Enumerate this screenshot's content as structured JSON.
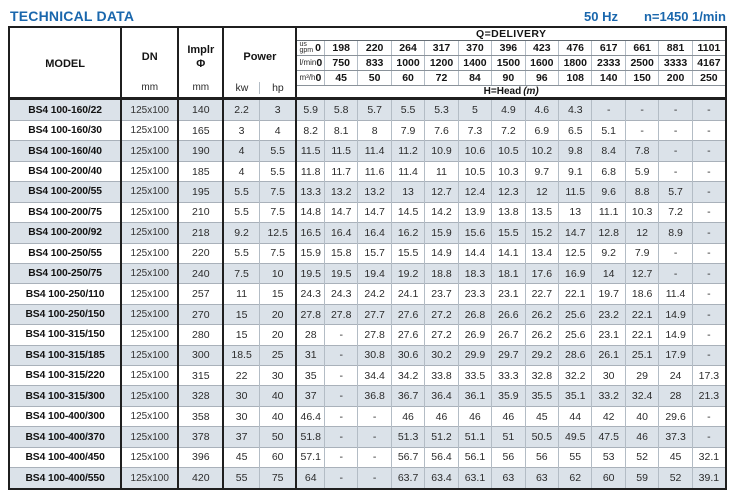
{
  "page": {
    "title": "TECHNICAL DATA",
    "frequency": "50 Hz",
    "speed": "n=1450 1/min"
  },
  "colors": {
    "accent_blue": "#1a67ad",
    "row_shade": "#dbe2e9",
    "border_dark": "#1f1f1f",
    "border_light": "#b3bcc5"
  },
  "table": {
    "header": {
      "model": "MODEL",
      "dn": "DN",
      "dn_unit": "mm",
      "impeller": "Implr",
      "impeller_symbol": "Φ",
      "impeller_unit": "mm",
      "power": "Power",
      "power_kw": "kw",
      "power_hp": "hp"
    },
    "delivery": {
      "title": "Q=DELIVERY",
      "head_title": "H=Head",
      "head_unit": "(m)",
      "unit_rows": [
        {
          "name": "us-gpm",
          "label_lines": [
            "us",
            "gpm"
          ],
          "zero": "0",
          "values": [
            "198",
            "220",
            "264",
            "317",
            "370",
            "396",
            "423",
            "476",
            "617",
            "661",
            "881",
            "1101"
          ]
        },
        {
          "name": "l-min",
          "label_lines": [
            "l/min"
          ],
          "zero": "0",
          "values": [
            "750",
            "833",
            "1000",
            "1200",
            "1400",
            "1500",
            "1600",
            "1800",
            "2333",
            "2500",
            "3333",
            "4167"
          ]
        },
        {
          "name": "m3-h",
          "label_lines": [
            "m³/h"
          ],
          "zero": "0",
          "values": [
            "45",
            "50",
            "60",
            "72",
            "84",
            "90",
            "96",
            "108",
            "140",
            "150",
            "200",
            "250"
          ]
        }
      ]
    },
    "rows": [
      {
        "model": "BS4 100-160/22",
        "dn": "125x100",
        "impeller": "140",
        "power_kw": "2.2",
        "power_hp": "3",
        "head": [
          "5.9",
          "5.8",
          "5.7",
          "5.5",
          "5.3",
          "5",
          "4.9",
          "4.6",
          "4.3",
          "-",
          "-",
          "-",
          "-"
        ]
      },
      {
        "model": "BS4 100-160/30",
        "dn": "125x100",
        "impeller": "165",
        "power_kw": "3",
        "power_hp": "4",
        "head": [
          "8.2",
          "8.1",
          "8",
          "7.9",
          "7.6",
          "7.3",
          "7.2",
          "6.9",
          "6.5",
          "5.1",
          "-",
          "-",
          "-"
        ]
      },
      {
        "model": "BS4 100-160/40",
        "dn": "125x100",
        "impeller": "190",
        "power_kw": "4",
        "power_hp": "5.5",
        "head": [
          "11.5",
          "11.5",
          "11.4",
          "11.2",
          "10.9",
          "10.6",
          "10.5",
          "10.2",
          "9.8",
          "8.4",
          "7.8",
          "-",
          "-"
        ]
      },
      {
        "model": "BS4 100-200/40",
        "dn": "125x100",
        "impeller": "185",
        "power_kw": "4",
        "power_hp": "5.5",
        "head": [
          "11.8",
          "11.7",
          "11.6",
          "11.4",
          "11",
          "10.5",
          "10.3",
          "9.7",
          "9.1",
          "6.8",
          "5.9",
          "-",
          "-"
        ]
      },
      {
        "model": "BS4 100-200/55",
        "dn": "125x100",
        "impeller": "195",
        "power_kw": "5.5",
        "power_hp": "7.5",
        "head": [
          "13.3",
          "13.2",
          "13.2",
          "13",
          "12.7",
          "12.4",
          "12.3",
          "12",
          "11.5",
          "9.6",
          "8.8",
          "5.7",
          "-"
        ]
      },
      {
        "model": "BS4 100-200/75",
        "dn": "125x100",
        "impeller": "210",
        "power_kw": "5.5",
        "power_hp": "7.5",
        "head": [
          "14.8",
          "14.7",
          "14.7",
          "14.5",
          "14.2",
          "13.9",
          "13.8",
          "13.5",
          "13",
          "11.1",
          "10.3",
          "7.2",
          "-"
        ]
      },
      {
        "model": "BS4 100-200/92",
        "dn": "125x100",
        "impeller": "218",
        "power_kw": "9.2",
        "power_hp": "12.5",
        "head": [
          "16.5",
          "16.4",
          "16.4",
          "16.2",
          "15.9",
          "15.6",
          "15.5",
          "15.2",
          "14.7",
          "12.8",
          "12",
          "8.9",
          "-"
        ]
      },
      {
        "model": "BS4 100-250/55",
        "dn": "125x100",
        "impeller": "220",
        "power_kw": "5.5",
        "power_hp": "7.5",
        "head": [
          "15.9",
          "15.8",
          "15.7",
          "15.5",
          "14.9",
          "14.4",
          "14.1",
          "13.4",
          "12.5",
          "9.2",
          "7.9",
          "-",
          "-"
        ]
      },
      {
        "model": "BS4 100-250/75",
        "dn": "125x100",
        "impeller": "240",
        "power_kw": "7.5",
        "power_hp": "10",
        "head": [
          "19.5",
          "19.5",
          "19.4",
          "19.2",
          "18.8",
          "18.3",
          "18.1",
          "17.6",
          "16.9",
          "14",
          "12.7",
          "-",
          "-"
        ]
      },
      {
        "model": "BS4 100-250/110",
        "dn": "125x100",
        "impeller": "257",
        "power_kw": "11",
        "power_hp": "15",
        "head": [
          "24.3",
          "24.3",
          "24.2",
          "24.1",
          "23.7",
          "23.3",
          "23.1",
          "22.7",
          "22.1",
          "19.7",
          "18.6",
          "11.4",
          "-"
        ]
      },
      {
        "model": "BS4 100-250/150",
        "dn": "125x100",
        "impeller": "270",
        "power_kw": "15",
        "power_hp": "20",
        "head": [
          "27.8",
          "27.8",
          "27.7",
          "27.6",
          "27.2",
          "26.8",
          "26.6",
          "26.2",
          "25.6",
          "23.2",
          "22.1",
          "14.9",
          "-"
        ]
      },
      {
        "model": "BS4 100-315/150",
        "dn": "125x100",
        "impeller": "280",
        "power_kw": "15",
        "power_hp": "20",
        "head": [
          "28",
          "-",
          "27.8",
          "27.6",
          "27.2",
          "26.9",
          "26.7",
          "26.2",
          "25.6",
          "23.1",
          "22.1",
          "14.9",
          "-"
        ]
      },
      {
        "model": "BS4 100-315/185",
        "dn": "125x100",
        "impeller": "300",
        "power_kw": "18.5",
        "power_hp": "25",
        "head": [
          "31",
          "-",
          "30.8",
          "30.6",
          "30.2",
          "29.9",
          "29.7",
          "29.2",
          "28.6",
          "26.1",
          "25.1",
          "17.9",
          "-"
        ]
      },
      {
        "model": "BS4 100-315/220",
        "dn": "125x100",
        "impeller": "315",
        "power_kw": "22",
        "power_hp": "30",
        "head": [
          "35",
          "-",
          "34.4",
          "34.2",
          "33.8",
          "33.5",
          "33.3",
          "32.8",
          "32.2",
          "30",
          "29",
          "24",
          "17.3"
        ]
      },
      {
        "model": "BS4 100-315/300",
        "dn": "125x100",
        "impeller": "328",
        "power_kw": "30",
        "power_hp": "40",
        "head": [
          "37",
          "-",
          "36.8",
          "36.7",
          "36.4",
          "36.1",
          "35.9",
          "35.5",
          "35.1",
          "33.2",
          "32.4",
          "28",
          "21.3"
        ]
      },
      {
        "model": "BS4 100-400/300",
        "dn": "125x100",
        "impeller": "358",
        "power_kw": "30",
        "power_hp": "40",
        "head": [
          "46.4",
          "-",
          "-",
          "46",
          "46",
          "46",
          "46",
          "45",
          "44",
          "42",
          "40",
          "29.6",
          "-"
        ]
      },
      {
        "model": "BS4 100-400/370",
        "dn": "125x100",
        "impeller": "378",
        "power_kw": "37",
        "power_hp": "50",
        "head": [
          "51.8",
          "-",
          "-",
          "51.3",
          "51.2",
          "51.1",
          "51",
          "50.5",
          "49.5",
          "47.5",
          "46",
          "37.3",
          "-"
        ]
      },
      {
        "model": "BS4 100-400/450",
        "dn": "125x100",
        "impeller": "396",
        "power_kw": "45",
        "power_hp": "60",
        "head": [
          "57.1",
          "-",
          "-",
          "56.7",
          "56.4",
          "56.1",
          "56",
          "56",
          "55",
          "53",
          "52",
          "45",
          "32.1"
        ]
      },
      {
        "model": "BS4 100-400/550",
        "dn": "125x100",
        "impeller": "420",
        "power_kw": "55",
        "power_hp": "75",
        "head": [
          "64",
          "-",
          "-",
          "63.7",
          "63.4",
          "63.1",
          "63",
          "63",
          "62",
          "60",
          "59",
          "52",
          "39.1"
        ]
      }
    ]
  }
}
